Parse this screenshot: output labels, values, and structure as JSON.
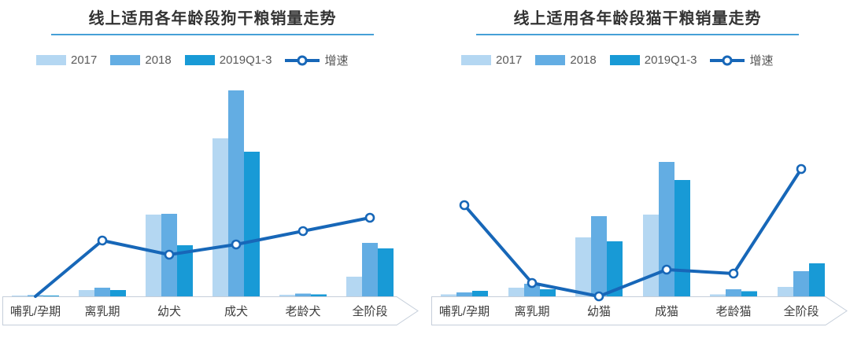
{
  "colors": {
    "bar_2017": "#B4D7F2",
    "bar_2018": "#63ADE3",
    "bar_2019": "#189AD6",
    "growth_line": "#1767B8",
    "title_underline": "#46A0D7",
    "axis_band_border": "#C5CEDA",
    "axis_band_fill": "#FFFFFF",
    "title_text": "#333333",
    "legend_text": "#595959",
    "axis_label_text": "#3D3D3D"
  },
  "charts": [
    {
      "id": "dog",
      "title": "线上适用各年龄段狗干粮销量走势",
      "legend": [
        {
          "label": "2017",
          "kind": "bar",
          "color_key": "bar_2017"
        },
        {
          "label": "2018",
          "kind": "bar",
          "color_key": "bar_2018"
        },
        {
          "label": "2019Q1-3",
          "kind": "bar",
          "color_key": "bar_2019"
        },
        {
          "label": "增速",
          "kind": "line",
          "color_key": "growth_line"
        }
      ],
      "chart_data": {
        "type": "bar+line combo",
        "title": "线上适用各年龄段狗干粮销量走势",
        "categories": [
          "哺乳/孕期",
          "离乳期",
          "幼犬",
          "成犬",
          "老龄犬",
          "全阶段"
        ],
        "value_scale": "relative index estimated from bar pixel heights (chart displays no y-axis ticks or value labels)",
        "ylim": [
          0,
          277
        ],
        "grid": false,
        "legend_position": "top-left",
        "series": [
          {
            "name": "2017",
            "type": "bar",
            "values": [
              1,
              8,
              104,
              201,
              2,
              25
            ]
          },
          {
            "name": "2018",
            "type": "bar",
            "values": [
              1.5,
              11,
              105,
              262,
              3.5,
              68
            ]
          },
          {
            "name": "2019Q1-3",
            "type": "bar",
            "values": [
              1,
              8,
              65,
              184,
              2.5,
              61
            ]
          },
          {
            "name": "增速",
            "type": "line",
            "values": [
              0,
              71,
              53,
              66,
              83,
              100
            ],
            "point_markers": [
              false,
              true,
              true,
              true,
              true,
              true
            ]
          }
        ]
      }
    },
    {
      "id": "cat",
      "title": "线上适用各年龄段猫干粮销量走势",
      "legend": [
        {
          "label": "2017",
          "kind": "bar",
          "color_key": "bar_2017"
        },
        {
          "label": "2018",
          "kind": "bar",
          "color_key": "bar_2018"
        },
        {
          "label": "2019Q1-3",
          "kind": "bar",
          "color_key": "bar_2019"
        },
        {
          "label": "增速",
          "kind": "line",
          "color_key": "growth_line"
        }
      ],
      "chart_data": {
        "type": "bar+line combo",
        "title": "线上适用各年龄段猫干粮销量走势",
        "categories": [
          "哺乳/孕期",
          "离乳期",
          "幼猫",
          "成猫",
          "老龄猫",
          "全阶段"
        ],
        "value_scale": "relative index estimated from bar pixel heights (chart displays no y-axis ticks or value labels)",
        "ylim": [
          0,
          277
        ],
        "grid": false,
        "legend_position": "top-left",
        "series": [
          {
            "name": "2017",
            "type": "bar",
            "values": [
              2.5,
              11,
              75,
              104,
              2.5,
              12
            ]
          },
          {
            "name": "2018",
            "type": "bar",
            "values": [
              5,
              16,
              102,
              171,
              9,
              32
            ]
          },
          {
            "name": "2019Q1-3",
            "type": "bar",
            "values": [
              7,
              9,
              70,
              148,
              6.5,
              42
            ]
          },
          {
            "name": "增速",
            "type": "line",
            "values": [
              116,
              17,
              0,
              34,
              29,
              162
            ],
            "point_markers": [
              true,
              true,
              true,
              true,
              true,
              true
            ]
          }
        ]
      }
    }
  ]
}
